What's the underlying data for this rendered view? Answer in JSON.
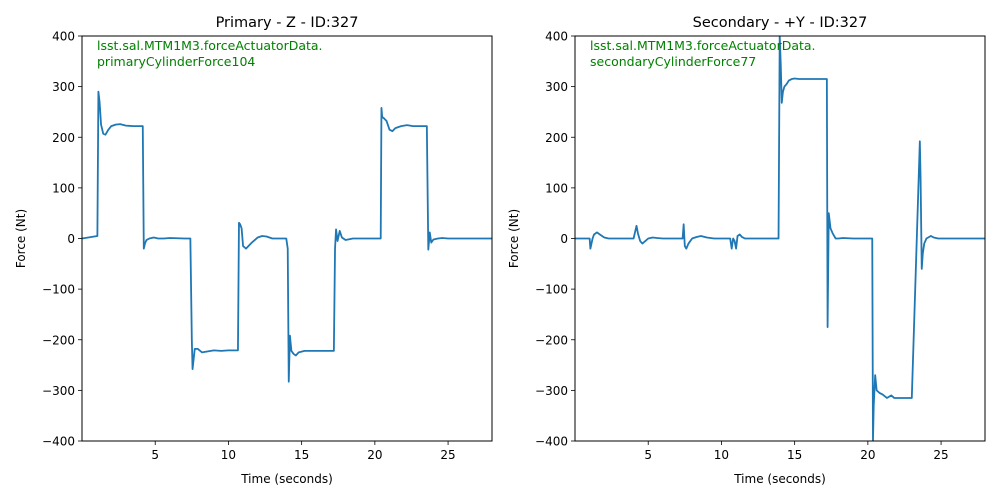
{
  "chart_data": [
    {
      "type": "line",
      "title": "Primary - Z - ID:327",
      "annotation": [
        "lsst.sal.MTM1M3.forceActuatorData.",
        "primaryCylinderForce104"
      ],
      "annotation_color": "#008000",
      "line_color": "#1f77b4",
      "xlabel": "Time (seconds)",
      "ylabel": "Force (Nt)",
      "xlim": [
        0,
        28
      ],
      "ylim": [
        -400,
        400
      ],
      "xticks": [
        5,
        10,
        15,
        20,
        25
      ],
      "yticks": [
        -400,
        -300,
        -200,
        -100,
        0,
        100,
        200,
        300,
        400
      ],
      "grid": false,
      "series": [
        {
          "x": [
            0,
            1.05,
            1.12,
            1.2,
            1.3,
            1.45,
            1.6,
            1.8,
            2.0,
            2.3,
            2.6,
            3.0,
            3.5,
            4.0,
            4.15,
            4.22,
            4.3,
            4.4,
            4.6,
            4.9,
            5.2,
            5.6,
            6.0,
            7.0,
            7.4,
            7.5,
            7.55,
            7.7,
            7.9,
            8.2,
            8.6,
            9.0,
            9.5,
            10.0,
            10.5,
            10.65,
            10.72,
            10.8,
            10.9,
            11.0,
            11.2,
            11.6,
            12.0,
            12.3,
            12.6,
            13.0,
            13.5,
            13.95,
            14.05,
            14.12,
            14.2,
            14.3,
            14.45,
            14.6,
            14.8,
            15.2,
            16.0,
            16.5,
            17.1,
            17.2,
            17.28,
            17.35,
            17.45,
            17.6,
            17.75,
            18.0,
            18.5,
            19.5,
            20.3,
            20.4,
            20.45,
            20.5,
            20.6,
            20.8,
            21.0,
            21.2,
            21.4,
            21.8,
            22.2,
            22.6,
            23.0,
            23.4,
            23.55,
            23.65,
            23.75,
            23.85,
            24.0,
            24.3,
            24.6,
            25.0,
            26.0,
            27.0,
            28.0
          ],
          "y": [
            0,
            5,
            290,
            270,
            225,
            207,
            205,
            215,
            222,
            225,
            226,
            223,
            222,
            222,
            222,
            -20,
            -10,
            -3,
            0,
            2,
            0,
            0,
            1,
            0,
            0,
            -200,
            -258,
            -218,
            -218,
            -225,
            -223,
            -221,
            -222,
            -221,
            -221,
            -221,
            31,
            28,
            20,
            -15,
            -20,
            -8,
            2,
            5,
            4,
            0,
            0,
            0,
            -20,
            -283,
            -192,
            -222,
            -228,
            -231,
            -225,
            -222,
            -222,
            -222,
            -222,
            -222,
            -20,
            18,
            -5,
            15,
            2,
            -3,
            0,
            0,
            0,
            0,
            258,
            240,
            238,
            232,
            215,
            212,
            218,
            222,
            224,
            222,
            222,
            222,
            222,
            -22,
            12,
            -8,
            -2,
            0,
            1,
            0,
            0,
            0,
            0
          ]
        }
      ]
    },
    {
      "type": "line",
      "title": "Secondary - +Y - ID:327",
      "annotation": [
        "lsst.sal.MTM1M3.forceActuatorData.",
        "secondaryCylinderForce77"
      ],
      "annotation_color": "#008000",
      "line_color": "#1f77b4",
      "xlabel": "Time (seconds)",
      "ylabel": "Force (Nt)",
      "xlim": [
        0,
        28
      ],
      "ylim": [
        -400,
        400
      ],
      "xticks": [
        5,
        10,
        15,
        20,
        25
      ],
      "yticks": [
        -400,
        -300,
        -200,
        -100,
        0,
        100,
        200,
        300,
        400
      ],
      "grid": false,
      "series": [
        {
          "x": [
            0,
            1.0,
            1.05,
            1.2,
            1.3,
            1.5,
            1.7,
            2.0,
            2.3,
            2.6,
            3.0,
            3.5,
            4.0,
            4.2,
            4.3,
            4.45,
            4.6,
            4.8,
            5.0,
            5.3,
            5.6,
            6.0,
            6.5,
            7.0,
            7.35,
            7.42,
            7.5,
            7.6,
            7.75,
            8.0,
            8.3,
            8.6,
            9.0,
            9.5,
            10.0,
            10.6,
            10.7,
            10.8,
            10.9,
            11.0,
            11.1,
            11.25,
            11.4,
            11.6,
            12.0,
            12.5,
            13.0,
            13.9,
            13.98,
            14.05,
            14.12,
            14.2,
            14.3,
            14.45,
            14.6,
            14.8,
            15.0,
            15.3,
            16.0,
            17.1,
            17.2,
            17.25,
            17.33,
            17.45,
            17.6,
            17.8,
            18.0,
            18.3,
            19.0,
            20.0,
            20.3,
            20.35,
            20.4,
            20.5,
            20.6,
            20.8,
            21.0,
            21.3,
            21.6,
            21.8,
            22.2,
            23.0,
            23.55,
            23.6,
            23.68,
            23.75,
            23.85,
            24.0,
            24.3,
            24.5,
            24.8,
            25.0,
            26.0,
            27.0,
            28.0
          ],
          "y": [
            0,
            0,
            -20,
            0,
            8,
            12,
            8,
            2,
            0,
            0,
            0,
            0,
            0,
            25,
            10,
            -5,
            -10,
            -5,
            0,
            2,
            1,
            0,
            0,
            0,
            0,
            28,
            -15,
            -20,
            -10,
            0,
            3,
            5,
            2,
            0,
            0,
            0,
            -20,
            0,
            -5,
            -20,
            5,
            8,
            3,
            0,
            0,
            0,
            0,
            0,
            400,
            345,
            268,
            290,
            300,
            305,
            312,
            315,
            316,
            315,
            315,
            315,
            315,
            -175,
            50,
            20,
            10,
            0,
            0,
            1,
            0,
            0,
            0,
            -400,
            -330,
            -270,
            -300,
            -305,
            -308,
            -315,
            -310,
            -315,
            -315,
            -315,
            192,
            120,
            -60,
            -30,
            -10,
            0,
            5,
            2,
            0,
            0,
            0,
            0,
            0
          ]
        }
      ]
    }
  ]
}
